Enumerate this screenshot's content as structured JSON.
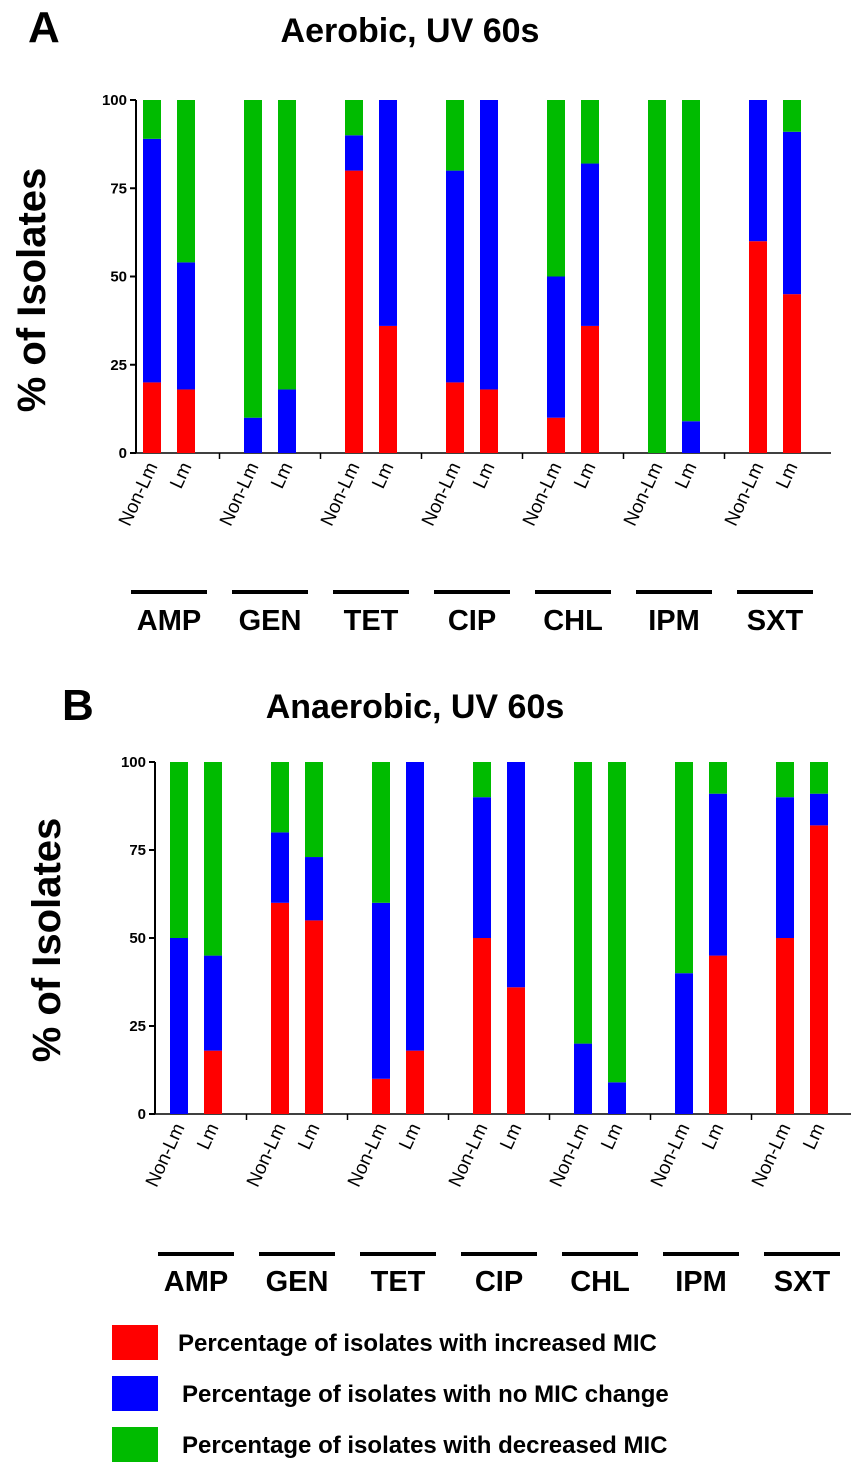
{
  "chart_data": [
    {
      "type": "bar",
      "stacked": true,
      "panel_letter": "A",
      "title": "Aerobic, UV 60s",
      "ylabel": "% of Isolates",
      "xlabel": "",
      "ylim": [
        0,
        100
      ],
      "yticks": [
        "0",
        "25",
        "50",
        "75",
        "100"
      ],
      "groups": [
        "AMP",
        "GEN",
        "TET",
        "CIP",
        "CHL",
        "IPM",
        "SXT"
      ],
      "categories": [
        "Non-Lm",
        "Lm"
      ],
      "series": [
        {
          "name": "Percentage of isolates with increased MIC",
          "color": "#ff0000",
          "values": [
            [
              20,
              18
            ],
            [
              0,
              0
            ],
            [
              80,
              36
            ],
            [
              20,
              18
            ],
            [
              10,
              36
            ],
            [
              0,
              0
            ],
            [
              60,
              45
            ]
          ]
        },
        {
          "name": "Percentage of isolates with no MIC change",
          "color": "#0000ff",
          "values": [
            [
              69,
              36
            ],
            [
              10,
              18
            ],
            [
              10,
              64
            ],
            [
              60,
              82
            ],
            [
              40,
              46
            ],
            [
              0,
              9
            ],
            [
              40,
              46
            ]
          ]
        },
        {
          "name": "Percentage of isolates with decreased MIC",
          "color": "#00bb00",
          "values": [
            [
              11,
              46
            ],
            [
              90,
              82
            ],
            [
              10,
              0
            ],
            [
              20,
              0
            ],
            [
              50,
              18
            ],
            [
              100,
              91
            ],
            [
              0,
              9
            ]
          ]
        }
      ]
    },
    {
      "type": "bar",
      "stacked": true,
      "panel_letter": "B",
      "title": "Anaerobic, UV 60s",
      "ylabel": "% of Isolates",
      "xlabel": "",
      "ylim": [
        0,
        100
      ],
      "yticks": [
        "0",
        "25",
        "50",
        "75",
        "100"
      ],
      "groups": [
        "AMP",
        "GEN",
        "TET",
        "CIP",
        "CHL",
        "IPM",
        "SXT"
      ],
      "categories": [
        "Non-Lm",
        "Lm"
      ],
      "series": [
        {
          "name": "Percentage of isolates with increased MIC",
          "color": "#ff0000",
          "values": [
            [
              0,
              18
            ],
            [
              60,
              55
            ],
            [
              10,
              18
            ],
            [
              50,
              36
            ],
            [
              0,
              0
            ],
            [
              0,
              45
            ],
            [
              50,
              82
            ]
          ]
        },
        {
          "name": "Percentage of isolates with no MIC change",
          "color": "#0000ff",
          "values": [
            [
              50,
              27
            ],
            [
              20,
              18
            ],
            [
              50,
              82
            ],
            [
              40,
              64
            ],
            [
              20,
              9
            ],
            [
              40,
              46
            ],
            [
              40,
              9
            ]
          ]
        },
        {
          "name": "Percentage of isolates with decreased MIC",
          "color": "#00bb00",
          "values": [
            [
              50,
              55
            ],
            [
              20,
              27
            ],
            [
              40,
              0
            ],
            [
              10,
              0
            ],
            [
              80,
              91
            ],
            [
              60,
              9
            ],
            [
              10,
              9
            ]
          ]
        }
      ]
    }
  ],
  "legend": {
    "items": [
      {
        "label": "Percentage of isolates with increased MIC",
        "color": "#ff0000"
      },
      {
        "label": "Percentage of isolates with no MIC change",
        "color": "#0000ff"
      },
      {
        "label": "Percentage of isolates with decreased MIC",
        "color": "#00bb00"
      }
    ]
  }
}
